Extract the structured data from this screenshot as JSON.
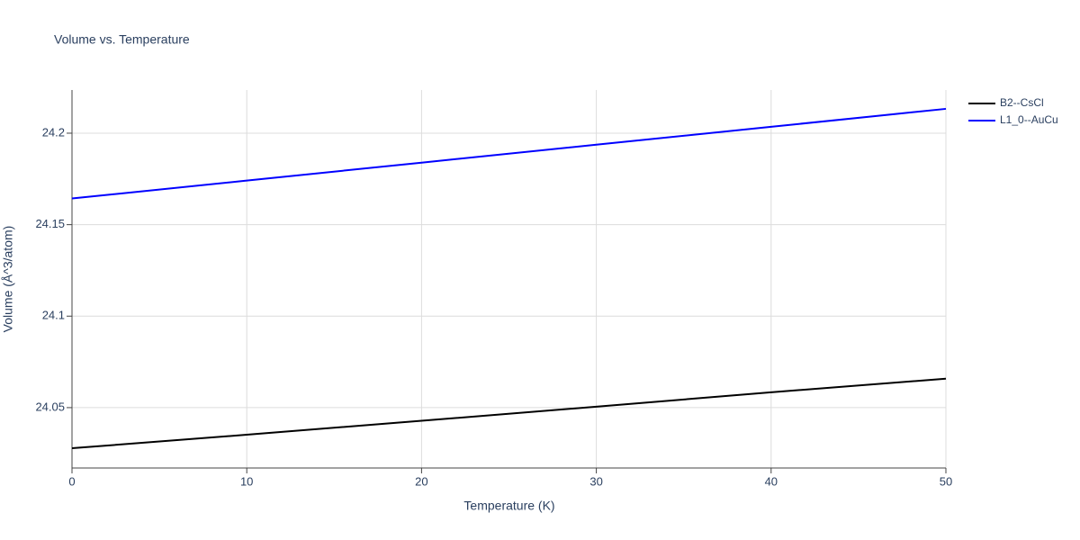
{
  "chart_data": {
    "type": "line",
    "title": "Volume vs. Temperature",
    "x_label": "Temperature (K)",
    "y_label": "Volume (Å^3/atom)",
    "x": [
      0,
      10,
      20,
      30,
      40,
      50
    ],
    "series": [
      {
        "name": "B2--CsCl",
        "color": "#000000",
        "values": [
          24.0278,
          24.0352,
          24.0428,
          24.0505,
          24.0584,
          24.0658
        ]
      },
      {
        "name": "L1_0--AuCu",
        "color": "#0000ff",
        "values": [
          24.1643,
          24.1741,
          24.1839,
          24.1937,
          24.2035,
          24.2133
        ]
      }
    ],
    "xlim": [
      0,
      50
    ],
    "xticks": [
      0,
      10,
      20,
      30,
      40,
      50
    ],
    "ylim": [
      24.017,
      24.2236
    ],
    "yticks": [
      24.05,
      24.1,
      24.15,
      24.2
    ],
    "grid": true,
    "legend": "top-right"
  }
}
